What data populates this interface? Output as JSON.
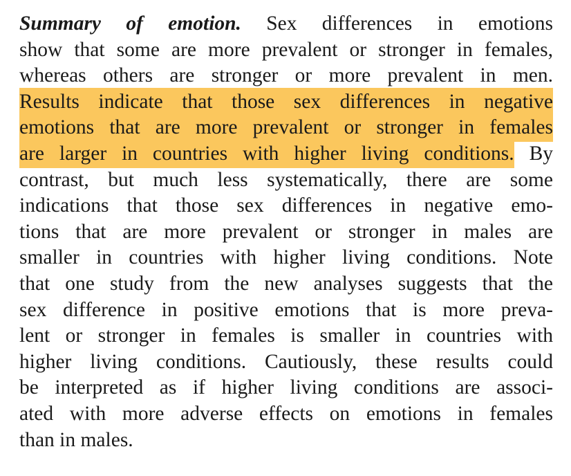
{
  "lines": [
    [
      {
        "text": "Summary of emotion.",
        "style": "bold-italic"
      },
      {
        "text": "Sex differences in emotions"
      }
    ],
    [
      {
        "text": "show that some are more prevalent or stronger in females,"
      }
    ],
    [
      {
        "text": "whereas others are stronger or more prevalent in men."
      }
    ],
    [
      {
        "text": "Results indicate that those sex differences in negative",
        "highlight": true
      }
    ],
    [
      {
        "text": "emotions that are more prevalent or stronger in females",
        "highlight": true
      }
    ],
    [
      {
        "text": "are larger in countries with higher living conditions.",
        "highlight": true
      },
      {
        "text": "By"
      }
    ],
    [
      {
        "text": "contrast, but much less systematically, there are some"
      }
    ],
    [
      {
        "text": "indications that those sex differences in negative emo-"
      }
    ],
    [
      {
        "text": "tions that are more prevalent or stronger in males are"
      }
    ],
    [
      {
        "text": "smaller in countries with higher living conditions. Note"
      }
    ],
    [
      {
        "text": "that one study from the new analyses suggests that the"
      }
    ],
    [
      {
        "text": "sex difference in positive emotions that is more preva-"
      }
    ],
    [
      {
        "text": "lent or stronger in females is smaller in countries with"
      }
    ],
    [
      {
        "text": "higher living conditions. Cautiously, these results could"
      }
    ],
    [
      {
        "text": "be interpreted as if higher living conditions are associ-"
      }
    ],
    [
      {
        "text": "ated with more adverse effects on emotions in females"
      }
    ],
    [
      {
        "text": "than in males."
      }
    ]
  ]
}
